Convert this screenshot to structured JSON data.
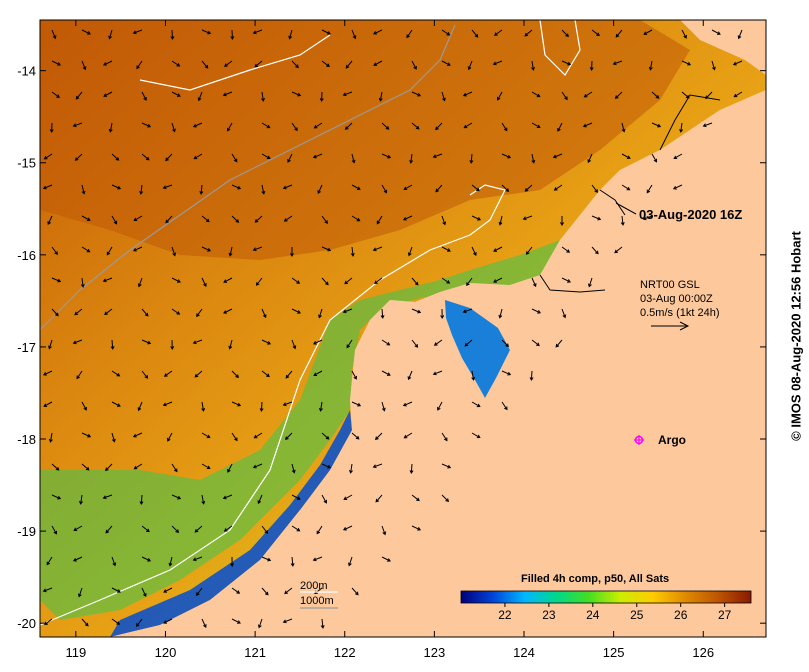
{
  "map": {
    "lon_ticks": [
      "119",
      "120",
      "121",
      "122",
      "123",
      "124",
      "125",
      "126"
    ],
    "lat_ticks": [
      "-14",
      "-15",
      "-16",
      "-17",
      "-18",
      "-19",
      "-20"
    ],
    "lon_range": [
      118.6,
      126.7
    ],
    "lat_range": [
      -20.15,
      -13.45
    ]
  },
  "timestamp_label": "03-Aug-2020 16Z",
  "current_info": {
    "line1": "NRT00 GSL",
    "line2": "03-Aug 00:00Z",
    "line3": "0.5m/s (1kt 24h)"
  },
  "argo": {
    "label": "Argo",
    "lon": 125.25,
    "lat": -17.99,
    "color": "#ff00ff"
  },
  "depth_legend": {
    "contour1": "200m",
    "contour2": "1000m"
  },
  "colorbar": {
    "title": "Filled 4h comp, p50, All Sats",
    "ticks": [
      "22",
      "23",
      "24",
      "25",
      "26",
      "27"
    ],
    "range": [
      21.0,
      27.6
    ],
    "colors": [
      "#00007a",
      "#0044d8",
      "#00b6ff",
      "#00d88a",
      "#44dd22",
      "#ccee00",
      "#ffcc00",
      "#e08c00",
      "#c05800",
      "#8a1a00"
    ]
  },
  "credit": "© IMOS 08-Aug-2020 12:56 Hobart",
  "colors": {
    "land": "#fdc99c",
    "warm": "#d27a10",
    "cool": "#10a0e0"
  }
}
